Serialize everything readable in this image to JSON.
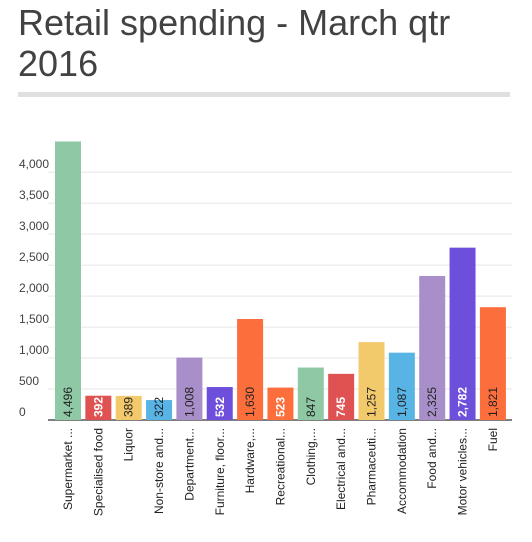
{
  "chart_data": {
    "type": "bar",
    "title": "Retail spending - March qtr 2016",
    "xlabel": "",
    "ylabel": "",
    "ylim": [
      0,
      4500
    ],
    "yticks": [
      0,
      500,
      1000,
      1500,
      2000,
      2500,
      3000,
      3500,
      4000
    ],
    "ytick_labels": [
      "0",
      "500",
      "1,000",
      "1,500",
      "2,000",
      "2,500",
      "3,000",
      "3,500",
      "4,000"
    ],
    "grid": true,
    "categories": [
      "Supermarket ...",
      "Specialised food",
      "Liquor",
      "Non-store and...",
      "Department...",
      "Furniture, floor...",
      "Hardware,...",
      "Recreational...",
      "Clothing,...",
      "Electrical and...",
      "Pharmaceuti...",
      "Accommodation",
      "Food and...",
      "Motor vehicles...",
      "Fuel"
    ],
    "values": [
      4496,
      392,
      389,
      322,
      1008,
      532,
      1630,
      523,
      847,
      745,
      1257,
      1087,
      2325,
      2782,
      1821
    ],
    "value_labels": [
      "4,496",
      "392",
      "389",
      "322",
      "1,008",
      "532",
      "1,630",
      "523",
      "847",
      "745",
      "1,257",
      "1,087",
      "2,325",
      "2,782",
      "1,821"
    ],
    "colors": [
      "#8fc8a4",
      "#e05252",
      "#f2ca6b",
      "#59b4e6",
      "#a98fca",
      "#6e4fdb",
      "#fc6e3c",
      "#fc6e3c",
      "#8fc8a4",
      "#e05252",
      "#f2ca6b",
      "#59b4e6",
      "#a98fca",
      "#6e4fdb",
      "#fc6e3c"
    ],
    "label_colors": [
      "#212121",
      "#ffffff",
      "#212121",
      "#212121",
      "#212121",
      "#ffffff",
      "#212121",
      "#ffffff",
      "#212121",
      "#ffffff",
      "#212121",
      "#212121",
      "#212121",
      "#ffffff",
      "#212121"
    ]
  }
}
